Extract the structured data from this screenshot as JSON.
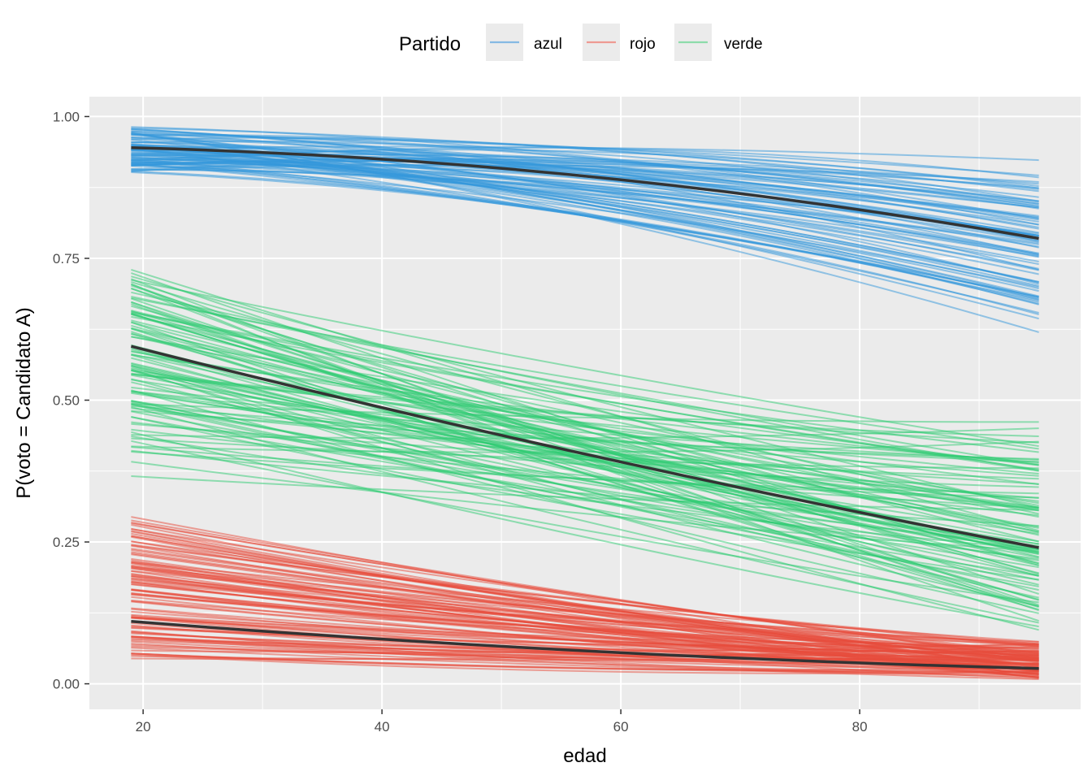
{
  "chart_data": {
    "type": "line",
    "xlabel": "edad",
    "ylabel": "P(voto = Candidato A)",
    "xlim": [
      15.5,
      98.5
    ],
    "ylim": [
      -0.045,
      1.035
    ],
    "x_range": [
      19,
      95
    ],
    "x_ticks": [
      20,
      40,
      60,
      80
    ],
    "x_minor_ticks": [
      30,
      50,
      70,
      90
    ],
    "y_ticks": [
      0.0,
      0.25,
      0.5,
      0.75,
      1.0
    ],
    "y_tick_labels": [
      "0.00",
      "0.25",
      "0.50",
      "0.75",
      "1.00"
    ],
    "y_minor_ticks": [
      0.125,
      0.375,
      0.625,
      0.875
    ],
    "grid": true,
    "legend": {
      "title": "Partido",
      "position": "top",
      "entries": [
        {
          "label": "azul",
          "color": "#85b9e3"
        },
        {
          "label": "rojo",
          "color": "#ee9a92"
        },
        {
          "label": "verde",
          "color": "#8ddcaa"
        }
      ]
    },
    "colors": {
      "azul": "#3498db",
      "rojo": "#e74c3c",
      "verde": "#2ecc71",
      "mean_line": "#333333",
      "panel": "#ebebeb"
    },
    "mean_curves": [
      {
        "party": "azul",
        "x": [
          19,
          57,
          95
        ],
        "y": [
          0.945,
          0.895,
          0.785
        ]
      },
      {
        "party": "verde",
        "x": [
          19,
          57,
          95
        ],
        "y": [
          0.595,
          0.405,
          0.24
        ]
      },
      {
        "party": "rojo",
        "x": [
          19,
          57,
          95
        ],
        "y": [
          0.11,
          0.058,
          0.027
        ]
      }
    ],
    "draw_ranges": [
      {
        "party": "azul",
        "count": 80,
        "start_y": [
          0.89,
          0.985
        ],
        "mid_y": [
          0.825,
          0.945
        ],
        "end_y": [
          0.595,
          0.925
        ]
      },
      {
        "party": "verde",
        "count": 100,
        "start_y": [
          0.36,
          0.745
        ],
        "mid_y": [
          0.22,
          0.555
        ],
        "end_y": [
          0.09,
          0.48
        ]
      },
      {
        "party": "rojo",
        "count": 100,
        "start_y": [
          0.026,
          0.315
        ],
        "mid_y": [
          0.01,
          0.17
        ],
        "end_y": [
          0.004,
          0.08
        ]
      }
    ]
  }
}
